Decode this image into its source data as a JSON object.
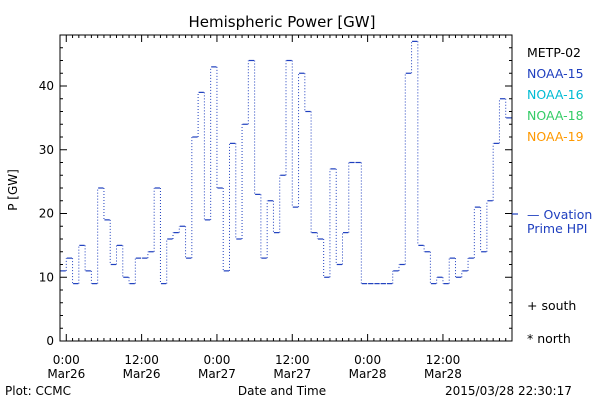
{
  "chart_data": {
    "type": "line",
    "title": "Hemispheric Power [GW]",
    "ylabel": "P [GW]",
    "xlabel": "Date and Time",
    "ylim": [
      0,
      48
    ],
    "yticks": [
      0,
      10,
      20,
      30,
      40
    ],
    "xlim_hours": [
      -1,
      71
    ],
    "xticks": [
      {
        "hour": 0,
        "time": "0:00",
        "date": "Mar26"
      },
      {
        "hour": 12,
        "time": "12:00",
        "date": "Mar26"
      },
      {
        "hour": 24,
        "time": "0:00",
        "date": "Mar27"
      },
      {
        "hour": 36,
        "time": "12:00",
        "date": "Mar27"
      },
      {
        "hour": 48,
        "time": "0:00",
        "date": "Mar28"
      },
      {
        "hour": 60,
        "time": "12:00",
        "date": "Mar28"
      }
    ],
    "legend": [
      "METP-02",
      "NOAA-15",
      "NOAA-16",
      "NOAA-18",
      "NOAA-19"
    ],
    "legend_colors": [
      "#000000",
      "#1f3fbf",
      "#00bcd4",
      "#33cc66",
      "#ff9900"
    ],
    "side_label": [
      "— Ovation",
      "Prime HPI"
    ],
    "side_value": 20,
    "markers": [
      "+ south",
      "* north"
    ],
    "series": [
      {
        "name": "NOAA-15",
        "color": "#1f3fbf",
        "x": [
          -1,
          0,
          1,
          2,
          3,
          4,
          5,
          6,
          7,
          8,
          9,
          10,
          11,
          12,
          13,
          14,
          15,
          16,
          17,
          18,
          19,
          20,
          21,
          22,
          23,
          24,
          25,
          26,
          27,
          28,
          29,
          30,
          31,
          32,
          33,
          34,
          35,
          36,
          37,
          38,
          39,
          40,
          41,
          42,
          43,
          44,
          45,
          46,
          47,
          48,
          49,
          50,
          51,
          52,
          53,
          54,
          55,
          56,
          57,
          58,
          59,
          60,
          61,
          62,
          63,
          64,
          65,
          66,
          67,
          68,
          69,
          70
        ],
        "y": [
          11,
          13,
          9,
          15,
          11,
          9,
          24,
          19,
          12,
          15,
          10,
          9,
          13,
          13,
          14,
          24,
          9,
          16,
          17,
          18,
          13,
          32,
          39,
          19,
          43,
          24,
          11,
          31,
          16,
          34,
          44,
          23,
          13,
          22,
          17,
          26,
          44,
          21,
          42,
          36,
          17,
          16,
          10,
          27,
          12,
          17,
          28,
          28,
          9,
          9,
          9,
          9,
          9,
          11,
          12,
          42,
          47,
          15,
          14,
          9,
          10,
          9,
          13,
          10,
          11,
          13,
          21,
          14,
          22,
          31,
          38,
          35
        ]
      }
    ]
  },
  "footer": {
    "plot_source": "Plot: CCMC",
    "timestamp": "2015/03/28 22:30:17"
  }
}
